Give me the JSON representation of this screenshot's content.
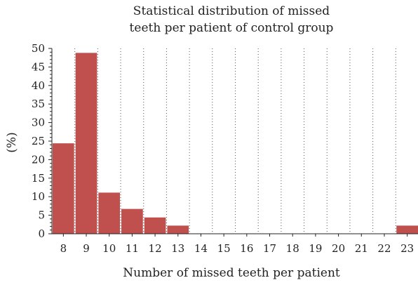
{
  "chart_data": {
    "type": "bar",
    "title_lines": [
      "Statistical distribution of missed",
      "teeth per patient of control group"
    ],
    "xlabel": "Number of missed teeth per patient",
    "ylabel": "(%)",
    "categories": [
      "8",
      "9",
      "10",
      "11",
      "12",
      "13",
      "14",
      "15",
      "16",
      "17",
      "18",
      "19",
      "20",
      "21",
      "22",
      "23"
    ],
    "values": [
      24.4,
      48.8,
      11.1,
      6.7,
      4.4,
      2.2,
      0,
      0,
      0,
      0,
      0,
      0,
      0,
      0,
      0,
      2.2
    ],
    "ylim": [
      0,
      50
    ],
    "yticks": [
      0,
      5,
      10,
      15,
      20,
      25,
      30,
      35,
      40,
      45,
      50
    ],
    "grid": "vertical dotted",
    "bar_color": "#c0504d"
  }
}
